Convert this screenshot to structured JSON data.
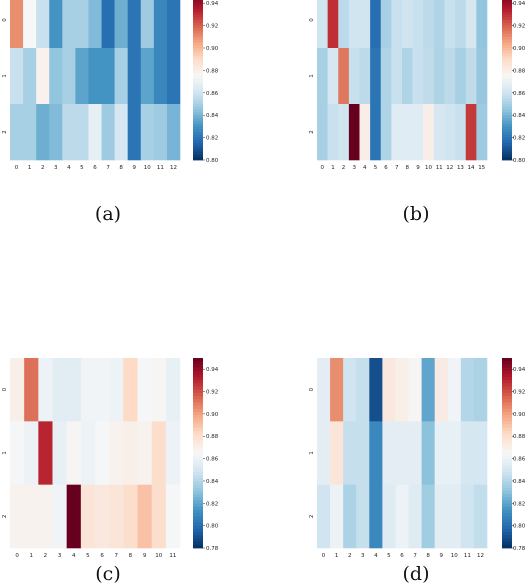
{
  "panels": [
    {
      "caption": "(a)"
    },
    {
      "caption": "(b)"
    },
    {
      "caption": "(c)"
    },
    {
      "caption": "(d)"
    }
  ],
  "colormap": [
    "#053061",
    "#2166ac",
    "#4393c3",
    "#92c5de",
    "#d1e5f0",
    "#f7f7f7",
    "#fddbc7",
    "#f4a582",
    "#d6604d",
    "#b2182b",
    "#67001f"
  ],
  "chart_data": [
    {
      "type": "heatmap",
      "panel": "a",
      "title": "",
      "x": [
        "0",
        "1",
        "2",
        "3",
        "4",
        "5",
        "6",
        "7",
        "8",
        "9",
        "10",
        "11",
        "12"
      ],
      "y": [
        "0",
        "1",
        "2"
      ],
      "values": [
        [
          0.91,
          0.875,
          0.858,
          0.83,
          0.85,
          0.85,
          0.842,
          0.818,
          0.838,
          0.82,
          0.848,
          0.826,
          0.82
        ],
        [
          0.858,
          0.85,
          0.878,
          0.845,
          0.85,
          0.835,
          0.83,
          0.83,
          0.85,
          0.82,
          0.835,
          0.826,
          0.82
        ],
        [
          0.85,
          0.85,
          0.838,
          0.842,
          0.855,
          0.855,
          0.868,
          0.848,
          0.862,
          0.82,
          0.85,
          0.848,
          0.84
        ]
      ],
      "colorbar": {
        "min": 0.8,
        "max": 0.95,
        "ticks": [
          "0.80",
          "0.82",
          "0.84",
          "0.86",
          "0.88",
          "0.90",
          "0.92",
          "0.94"
        ]
      },
      "xlim_note": "clipped at top of panel"
    },
    {
      "type": "heatmap",
      "panel": "b",
      "title": "",
      "x": [
        "0",
        "1",
        "2",
        "3",
        "4",
        "5",
        "6",
        "7",
        "8",
        "9",
        "10",
        "11",
        "12",
        "13",
        "14",
        "15"
      ],
      "y": [
        "0",
        "1",
        "2"
      ],
      "values": [
        [
          0.86,
          0.93,
          0.855,
          0.86,
          0.86,
          0.818,
          0.85,
          0.858,
          0.86,
          0.858,
          0.855,
          0.852,
          0.858,
          0.855,
          0.862,
          0.845
        ],
        [
          0.85,
          0.862,
          0.915,
          0.858,
          0.855,
          0.82,
          0.852,
          0.858,
          0.852,
          0.858,
          0.856,
          0.852,
          0.855,
          0.85,
          0.856,
          0.846
        ],
        [
          0.85,
          0.858,
          0.86,
          0.95,
          0.88,
          0.82,
          0.852,
          0.866,
          0.866,
          0.866,
          0.88,
          0.862,
          0.86,
          0.858,
          0.928,
          0.848
        ]
      ],
      "colorbar": {
        "min": 0.8,
        "max": 0.95,
        "ticks": [
          "0.80",
          "0.82",
          "0.84",
          "0.86",
          "0.88",
          "0.90",
          "0.92",
          "0.94"
        ]
      }
    },
    {
      "type": "heatmap",
      "panel": "c",
      "title": "",
      "x": [
        "0",
        "1",
        "2",
        "3",
        "4",
        "5",
        "6",
        "7",
        "8",
        "9",
        "10",
        "11"
      ],
      "y": [
        "0",
        "1",
        "2"
      ],
      "values": [
        [
          0.87,
          0.912,
          0.86,
          0.855,
          0.855,
          0.862,
          0.862,
          0.86,
          0.882,
          0.864,
          0.866,
          0.858
        ],
        [
          0.864,
          0.86,
          0.93,
          0.858,
          0.866,
          0.86,
          0.864,
          0.868,
          0.87,
          0.868,
          0.88,
          0.86
        ],
        [
          0.868,
          0.868,
          0.868,
          0.862,
          0.95,
          0.876,
          0.874,
          0.876,
          0.88,
          0.89,
          0.88,
          0.864
        ]
      ],
      "colorbar": {
        "min": 0.78,
        "max": 0.95,
        "ticks": [
          "0.78",
          "0.80",
          "0.82",
          "0.84",
          "0.86",
          "0.88",
          "0.90",
          "0.92",
          "0.94"
        ]
      }
    },
    {
      "type": "heatmap",
      "panel": "d",
      "title": "",
      "x": [
        "0",
        "1",
        "2",
        "3",
        "4",
        "5",
        "6",
        "7",
        "8",
        "9",
        "10",
        "11",
        "12"
      ],
      "y": [
        "0",
        "1",
        "2"
      ],
      "values": [
        [
          0.856,
          0.905,
          0.848,
          0.845,
          0.79,
          0.874,
          0.87,
          0.866,
          0.82,
          0.872,
          0.862,
          0.84,
          0.838
        ],
        [
          0.856,
          0.876,
          0.845,
          0.845,
          0.81,
          0.856,
          0.856,
          0.856,
          0.83,
          0.858,
          0.858,
          0.85,
          0.85
        ],
        [
          0.848,
          0.86,
          0.838,
          0.845,
          0.81,
          0.854,
          0.86,
          0.854,
          0.835,
          0.855,
          0.855,
          0.848,
          0.844
        ]
      ],
      "colorbar": {
        "min": 0.78,
        "max": 0.95,
        "ticks": [
          "0.78",
          "0.80",
          "0.82",
          "0.84",
          "0.86",
          "0.88",
          "0.90",
          "0.92",
          "0.94"
        ]
      }
    }
  ]
}
